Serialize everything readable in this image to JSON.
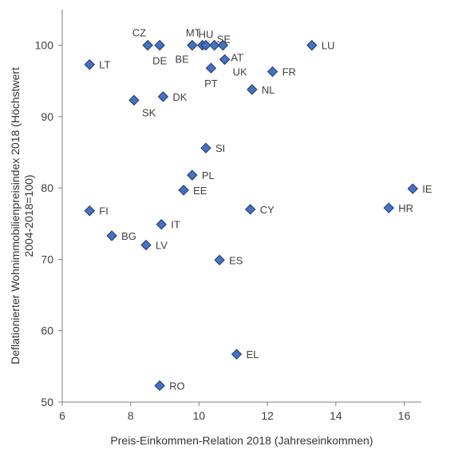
{
  "chart_data": {
    "type": "scatter",
    "xlabel": "Preis-Einkommen-Relation 2018 (Jahreseinkommen)",
    "ylabel_lines": [
      "Deflationierter Wohnimmobilienpreisindex 2018 (Höchstwert",
      "2004-2018=100)"
    ],
    "xlim": [
      6,
      16.5
    ],
    "ylim": [
      50,
      105
    ],
    "xticks": [
      6,
      8,
      10,
      12,
      14,
      16
    ],
    "yticks": [
      50,
      60,
      70,
      80,
      90,
      100
    ],
    "grid": false,
    "marker_color": "#4472c4",
    "marker_edge": "#1f3864",
    "points": [
      {
        "label": "CZ",
        "x": 8.5,
        "y": 100,
        "lpos": "tl"
      },
      {
        "label": "DE",
        "x": 8.85,
        "y": 100,
        "lpos": "b"
      },
      {
        "label": "BE",
        "x": 9.8,
        "y": 100,
        "lpos": "bl"
      },
      {
        "label": "MT",
        "x": 10.1,
        "y": 100,
        "lpos": "tl"
      },
      {
        "label": "HU",
        "x": 10.2,
        "y": 100,
        "lpos": "t"
      },
      {
        "label": "SE",
        "x": 10.45,
        "y": 100,
        "lpos": "tr"
      },
      {
        "label": "AT",
        "x": 10.7,
        "y": 100,
        "lpos": "br"
      },
      {
        "label": "LU",
        "x": 13.3,
        "y": 100,
        "lpos": "r"
      },
      {
        "label": "LT",
        "x": 6.8,
        "y": 97.3,
        "lpos": "r"
      },
      {
        "label": "UK",
        "x": 10.75,
        "y": 98.0,
        "lpos": "br"
      },
      {
        "label": "PT",
        "x": 10.35,
        "y": 96.8,
        "lpos": "b"
      },
      {
        "label": "FR",
        "x": 12.15,
        "y": 96.3,
        "lpos": "r"
      },
      {
        "label": "NL",
        "x": 11.55,
        "y": 93.8,
        "lpos": "r"
      },
      {
        "label": "SK",
        "x": 8.1,
        "y": 92.3,
        "lpos": "br"
      },
      {
        "label": "DK",
        "x": 8.95,
        "y": 92.8,
        "lpos": "r"
      },
      {
        "label": "SI",
        "x": 10.2,
        "y": 85.6,
        "lpos": "r"
      },
      {
        "label": "PL",
        "x": 9.8,
        "y": 81.8,
        "lpos": "r"
      },
      {
        "label": "EE",
        "x": 9.55,
        "y": 79.7,
        "lpos": "r"
      },
      {
        "label": "IE",
        "x": 16.25,
        "y": 79.9,
        "lpos": "r"
      },
      {
        "label": "FI",
        "x": 6.8,
        "y": 76.8,
        "lpos": "r"
      },
      {
        "label": "CY",
        "x": 11.5,
        "y": 77.0,
        "lpos": "r"
      },
      {
        "label": "HR",
        "x": 15.55,
        "y": 77.2,
        "lpos": "r"
      },
      {
        "label": "IT",
        "x": 8.9,
        "y": 74.9,
        "lpos": "r"
      },
      {
        "label": "BG",
        "x": 7.45,
        "y": 73.3,
        "lpos": "r"
      },
      {
        "label": "LV",
        "x": 8.45,
        "y": 72.0,
        "lpos": "r"
      },
      {
        "label": "ES",
        "x": 10.6,
        "y": 69.9,
        "lpos": "r"
      },
      {
        "label": "EL",
        "x": 11.1,
        "y": 56.7,
        "lpos": "r"
      },
      {
        "label": "RO",
        "x": 8.85,
        "y": 52.3,
        "lpos": "r"
      }
    ]
  }
}
